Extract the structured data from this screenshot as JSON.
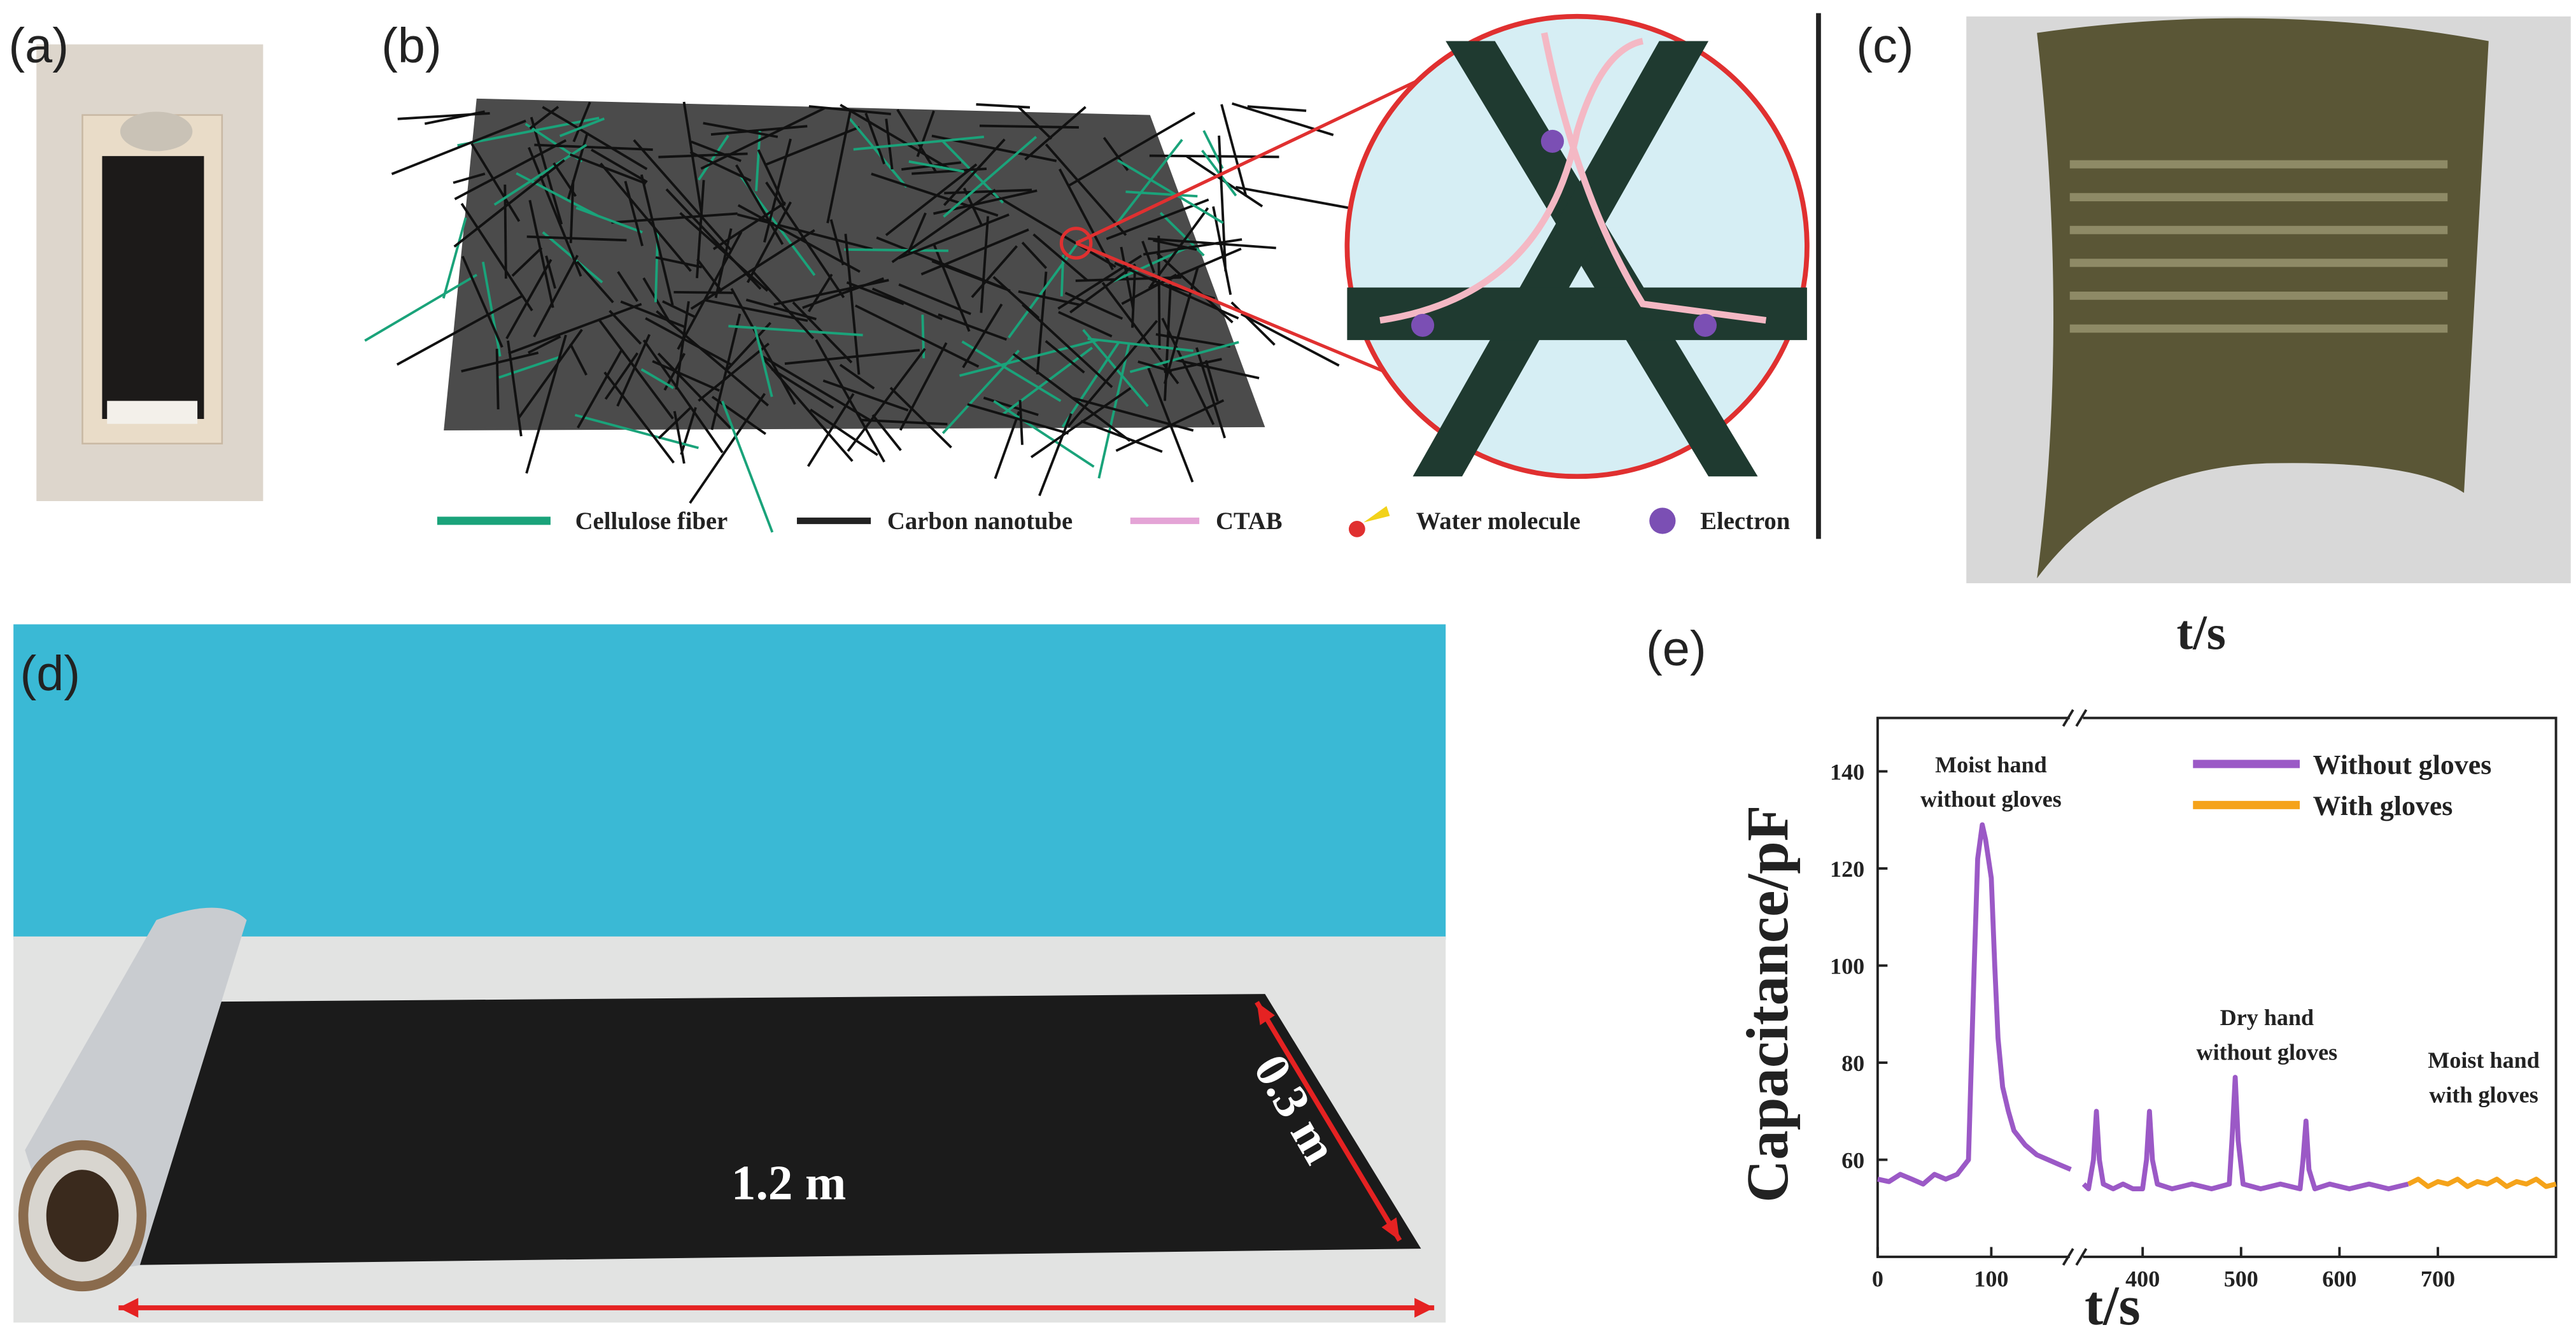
{
  "panels": {
    "a": {
      "label": "(a)"
    },
    "b": {
      "label": "(b)",
      "legend": [
        "Cellulose fiber",
        "Carbon nanotube",
        "CTAB",
        "Water molecule",
        "Electron"
      ]
    },
    "c": {
      "label": "(c)",
      "caption": "t/s"
    },
    "d": {
      "label": "(d)",
      "annotations": [
        "1.2 m",
        "0.3 m"
      ]
    },
    "e": {
      "label": "(e)"
    }
  },
  "chart_data": {
    "type": "line",
    "ylabel": "Capacitance/pF",
    "xlabel": "t/s",
    "xlim": [
      0,
      820
    ],
    "x_break": [
      172,
      336
    ],
    "ylim": [
      40,
      151
    ],
    "xticks": [
      0,
      100,
      400,
      500,
      600,
      700
    ],
    "yticks": [
      60,
      80,
      100,
      120,
      140
    ],
    "series": [
      {
        "name": "Without gloves",
        "color": "#9b59c6",
        "x": [
          0,
          10,
          20,
          30,
          40,
          50,
          60,
          70,
          80,
          85,
          88,
          92,
          95,
          100,
          103,
          106,
          110,
          115,
          120,
          130,
          140,
          150,
          160,
          170,
          250,
          340,
          345,
          350,
          353,
          356,
          360,
          370,
          380,
          390,
          400,
          404,
          407,
          410,
          415,
          430,
          450,
          470,
          488,
          491,
          494,
          497,
          502,
          520,
          540,
          560,
          563,
          566,
          569,
          575,
          590,
          610,
          630,
          650,
          670
        ],
        "values": [
          56,
          55.5,
          57,
          56,
          55,
          57,
          56,
          57,
          60,
          100,
          122,
          129,
          126,
          118,
          100,
          85,
          75,
          70,
          66,
          63,
          61,
          60,
          59,
          58,
          null,
          55,
          54,
          60,
          70,
          60,
          55,
          54,
          55,
          54,
          54,
          60,
          70,
          60,
          55,
          54,
          55,
          54,
          55,
          65,
          77,
          64,
          55,
          54,
          55,
          54,
          60,
          68,
          58,
          54,
          55,
          54,
          55,
          54,
          55
        ]
      },
      {
        "name": "With gloves",
        "color": "#f5a31a",
        "x": [
          670,
          680,
          690,
          700,
          710,
          720,
          730,
          740,
          750,
          760,
          770,
          780,
          790,
          800,
          810,
          820
        ],
        "values": [
          55,
          56,
          54.5,
          55.5,
          55,
          56,
          54.5,
          55.5,
          55,
          56,
          54.5,
          55.5,
          55,
          56,
          54.5,
          55
        ]
      }
    ],
    "annotations": [
      {
        "text": [
          "Moist hand",
          "without gloves"
        ]
      },
      {
        "text": [
          "Dry hand",
          "without gloves"
        ]
      },
      {
        "text": [
          "Moist hand",
          "with gloves"
        ]
      }
    ]
  }
}
